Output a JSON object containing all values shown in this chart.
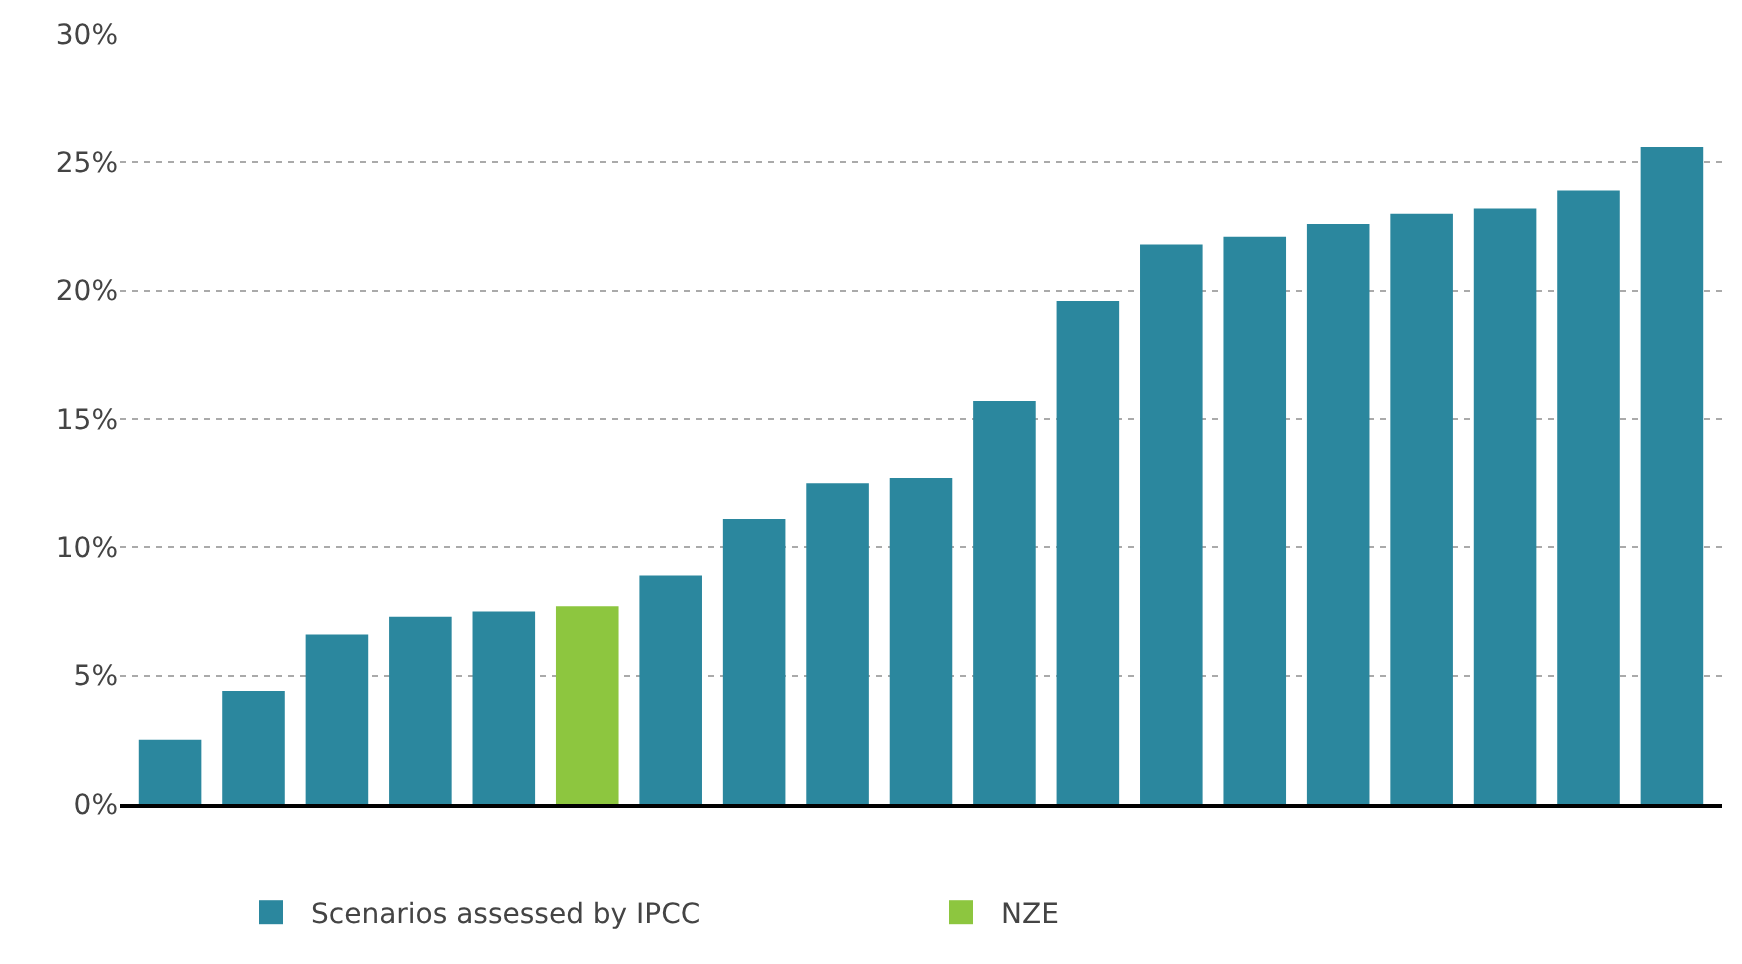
{
  "chart_data": {
    "type": "bar",
    "stacked": true,
    "categories": [
      null,
      null,
      null,
      null,
      null,
      null,
      null,
      null,
      null,
      null,
      null,
      null,
      null,
      null,
      null,
      null,
      null,
      null,
      null
    ],
    "series": [
      {
        "name": "Scenarios assessed by IPCC",
        "color": "#2b879e",
        "values": [
          2.5,
          4.4,
          6.6,
          7.3,
          7.5,
          null,
          8.9,
          11.1,
          12.5,
          12.7,
          15.7,
          19.6,
          21.8,
          22.1,
          22.6,
          23.0,
          23.2,
          23.9,
          25.6
        ]
      },
      {
        "name": "NZE",
        "color": "#8dc63f",
        "values": [
          null,
          null,
          null,
          null,
          null,
          7.7,
          null,
          null,
          null,
          null,
          null,
          null,
          null,
          null,
          null,
          null,
          null,
          null,
          null
        ]
      }
    ],
    "ylim": [
      0,
      30
    ],
    "yticks": [
      {
        "value": 0,
        "label": "0%"
      },
      {
        "value": 5,
        "label": "5%"
      },
      {
        "value": 10,
        "label": "10%"
      },
      {
        "value": 15,
        "label": "15%"
      },
      {
        "value": 20,
        "label": "20%"
      },
      {
        "value": 25,
        "label": "25%"
      },
      {
        "value": 30,
        "label": "30%"
      }
    ],
    "grid": "y",
    "legend": "bottom"
  }
}
